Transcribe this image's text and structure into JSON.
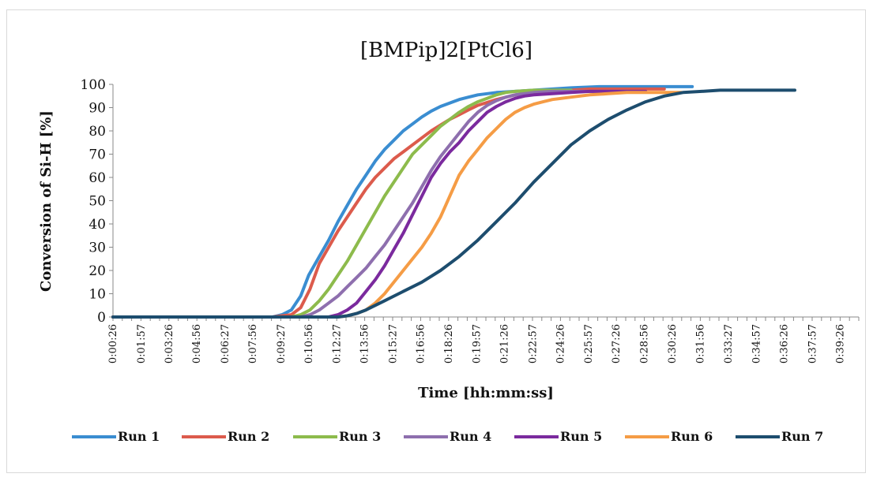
{
  "chart_data": {
    "type": "line",
    "title": "[BMPip]2[PtCl6]",
    "xlabel": "Time [hh:mm:ss]",
    "ylabel": "Conversion of Si-H [%]",
    "ylim": [
      0,
      100
    ],
    "yticks": [
      0,
      10,
      20,
      30,
      40,
      50,
      60,
      70,
      80,
      90,
      100
    ],
    "xlim": [
      "0:00:26",
      "0:40:26"
    ],
    "xticks": [
      "0:00:26",
      "0:01:57",
      "0:03:26",
      "0:04:56",
      "0:06:27",
      "0:07:56",
      "0:09:27",
      "0:10:56",
      "0:12:27",
      "0:13:56",
      "0:15:27",
      "0:16:56",
      "0:18:26",
      "0:19:57",
      "0:21:26",
      "0:22:57",
      "0:24:26",
      "0:25:57",
      "0:27:26",
      "0:28:56",
      "0:30:26",
      "0:31:56",
      "0:33:27",
      "0:34:57",
      "0:36:26",
      "0:37:57",
      "0:39:26"
    ],
    "grid": false,
    "legend_position": "bottom",
    "series": [
      {
        "name": "Run 1",
        "color": "#3A8DD1",
        "x": [
          "0:00:26",
          "0:09:00",
          "0:09:30",
          "0:10:00",
          "0:10:30",
          "0:10:56",
          "0:11:30",
          "0:12:00",
          "0:12:30",
          "0:13:00",
          "0:13:30",
          "0:14:00",
          "0:14:30",
          "0:15:00",
          "0:15:30",
          "0:16:00",
          "0:16:30",
          "0:17:00",
          "0:17:30",
          "0:18:00",
          "0:18:30",
          "0:19:00",
          "0:19:30",
          "0:20:00",
          "0:20:30",
          "0:21:00",
          "0:22:00",
          "0:23:00",
          "0:24:00",
          "0:25:00",
          "0:26:30",
          "0:28:00",
          "0:29:30",
          "0:31:30"
        ],
        "y": [
          0,
          0,
          1,
          3,
          9,
          18,
          26,
          33,
          41,
          48,
          55,
          61,
          67,
          72,
          76,
          80,
          83,
          86,
          88.5,
          90.5,
          92,
          93.5,
          94.5,
          95.5,
          96,
          96.5,
          97,
          97.5,
          98,
          98.5,
          99,
          99,
          99,
          99
        ]
      },
      {
        "name": "Run 2",
        "color": "#DC5B4C",
        "x": [
          "0:00:26",
          "0:09:00",
          "0:10:00",
          "0:10:30",
          "0:11:00",
          "0:11:30",
          "0:12:00",
          "0:12:30",
          "0:13:00",
          "0:13:30",
          "0:14:00",
          "0:14:30",
          "0:15:00",
          "0:15:30",
          "0:16:00",
          "0:16:30",
          "0:17:00",
          "0:17:30",
          "0:18:00",
          "0:18:30",
          "0:19:00",
          "0:19:30",
          "0:20:00",
          "0:21:00",
          "0:22:00",
          "0:23:00",
          "0:24:00",
          "0:25:00",
          "0:26:00",
          "0:27:00",
          "0:28:00",
          "0:29:00",
          "0:30:00"
        ],
        "y": [
          0,
          0,
          1,
          4,
          12,
          23,
          30,
          37,
          43,
          49,
          55,
          60,
          64,
          68,
          71,
          74,
          77,
          80,
          82.5,
          85,
          87,
          89,
          91,
          93.5,
          95.5,
          96.5,
          97,
          97.5,
          98,
          98,
          98,
          98,
          98
        ]
      },
      {
        "name": "Run 3",
        "color": "#8DBB4C",
        "x": [
          "0:00:26",
          "0:10:00",
          "0:10:30",
          "0:11:00",
          "0:11:30",
          "0:12:00",
          "0:12:30",
          "0:13:00",
          "0:13:30",
          "0:14:00",
          "0:14:30",
          "0:15:00",
          "0:15:30",
          "0:16:00",
          "0:16:30",
          "0:17:00",
          "0:17:30",
          "0:18:00",
          "0:18:30",
          "0:19:00",
          "0:19:30",
          "0:20:00",
          "0:20:30",
          "0:21:00",
          "0:21:30",
          "0:22:00",
          "0:23:00",
          "0:24:00",
          "0:25:00"
        ],
        "y": [
          0,
          0,
          1,
          3,
          7,
          12,
          18,
          24,
          31,
          38,
          45,
          52,
          58,
          64,
          70,
          74,
          78,
          82,
          85,
          88,
          90.5,
          92.5,
          94,
          95.5,
          96.5,
          97,
          97.5,
          97.5,
          97.5
        ]
      },
      {
        "name": "Run 4",
        "color": "#8E6FAE",
        "x": [
          "0:00:26",
          "0:10:30",
          "0:11:00",
          "0:11:30",
          "0:12:00",
          "0:12:30",
          "0:13:00",
          "0:13:30",
          "0:14:00",
          "0:14:30",
          "0:15:00",
          "0:15:30",
          "0:16:00",
          "0:16:30",
          "0:17:00",
          "0:17:30",
          "0:18:00",
          "0:18:30",
          "0:19:00",
          "0:19:30",
          "0:20:00",
          "0:20:30",
          "0:21:00",
          "0:21:30",
          "0:22:00",
          "0:23:00",
          "0:24:00",
          "0:25:00",
          "0:26:00",
          "0:27:00",
          "0:28:00"
        ],
        "y": [
          0,
          0,
          1,
          3,
          6,
          9,
          13,
          17,
          21,
          26,
          31,
          37,
          43,
          49,
          56,
          63,
          69,
          74,
          79,
          84,
          88,
          91,
          93,
          94.5,
          95.5,
          96.5,
          97,
          97,
          97,
          97,
          97
        ]
      },
      {
        "name": "Run 5",
        "color": "#7B2A9E",
        "x": [
          "0:00:26",
          "0:12:00",
          "0:12:30",
          "0:13:00",
          "0:13:30",
          "0:14:00",
          "0:14:30",
          "0:15:00",
          "0:15:30",
          "0:16:00",
          "0:16:30",
          "0:17:00",
          "0:17:30",
          "0:18:00",
          "0:18:30",
          "0:19:00",
          "0:19:30",
          "0:20:00",
          "0:20:30",
          "0:21:00",
          "0:21:30",
          "0:22:00",
          "0:22:30",
          "0:23:00",
          "0:24:00",
          "0:25:00",
          "0:26:00",
          "0:27:00",
          "0:28:00",
          "0:29:00"
        ],
        "y": [
          0,
          0,
          1,
          3,
          6,
          11,
          16,
          22,
          29,
          36,
          44,
          52,
          60,
          66,
          71,
          75,
          80,
          84,
          88,
          90.5,
          92.5,
          94,
          95,
          95.5,
          96,
          96.5,
          97,
          97,
          97,
          97
        ]
      },
      {
        "name": "Run 6",
        "color": "#F59C45",
        "x": [
          "0:00:26",
          "0:12:30",
          "0:13:00",
          "0:13:30",
          "0:14:00",
          "0:14:30",
          "0:15:00",
          "0:15:30",
          "0:16:00",
          "0:16:30",
          "0:17:00",
          "0:17:30",
          "0:18:00",
          "0:18:30",
          "0:19:00",
          "0:19:30",
          "0:20:00",
          "0:20:30",
          "0:21:00",
          "0:21:30",
          "0:22:00",
          "0:22:30",
          "0:23:00",
          "0:23:30",
          "0:24:00",
          "0:25:00",
          "0:26:00",
          "0:27:00",
          "0:28:00",
          "0:29:00",
          "0:30:00",
          "0:30:56"
        ],
        "y": [
          0,
          0,
          0.5,
          1.5,
          3,
          6,
          10,
          15,
          20,
          25,
          30,
          36,
          43,
          52,
          61,
          67,
          72,
          77,
          81,
          85,
          88,
          90,
          91.5,
          92.5,
          93.5,
          94.5,
          95.5,
          96,
          96.5,
          96.5,
          96.5,
          96.5
        ]
      },
      {
        "name": "Run 7",
        "color": "#1D4D6E",
        "x": [
          "0:00:26",
          "0:12:30",
          "0:13:00",
          "0:13:30",
          "0:14:00",
          "0:15:00",
          "0:16:00",
          "0:17:00",
          "0:18:00",
          "0:19:00",
          "0:20:00",
          "0:21:00",
          "0:22:00",
          "0:23:00",
          "0:24:00",
          "0:25:00",
          "0:26:00",
          "0:27:00",
          "0:28:00",
          "0:29:00",
          "0:30:00",
          "0:31:00",
          "0:32:00",
          "0:33:00",
          "0:34:00",
          "0:35:00",
          "0:36:00",
          "0:37:00"
        ],
        "y": [
          0,
          0,
          0.5,
          1.5,
          3,
          7,
          11,
          15,
          20,
          26,
          33,
          41,
          49,
          58,
          66,
          74,
          80,
          85,
          89,
          92.5,
          95,
          96.5,
          97,
          97.5,
          97.5,
          97.5,
          97.5,
          97.5
        ]
      }
    ]
  }
}
